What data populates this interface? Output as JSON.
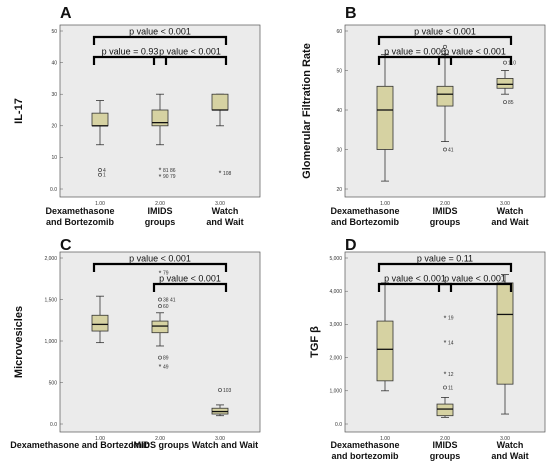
{
  "chart_data": [
    {
      "panel": "A",
      "type": "box",
      "ylabel": "IL-17",
      "ylim": [
        0,
        50
      ],
      "yticks": [
        0.0,
        10,
        20,
        30,
        40,
        50
      ],
      "ytick_labels": [
        "0.0",
        "10",
        "20",
        "30",
        "40",
        "50"
      ],
      "xtick_labels": [
        "1.00",
        "2.00",
        "3.00"
      ],
      "categories": [
        {
          "line1": "Dexamethasone",
          "line2": "and Bortezomib"
        },
        {
          "line1": "IMIDS",
          "line2": "groups"
        },
        {
          "line1": "Watch",
          "line2": "and Wait"
        }
      ],
      "boxes": [
        {
          "min": 14,
          "q1": 20,
          "median": 20,
          "q3": 24,
          "max": 28,
          "outliers": [
            {
              "v": 6,
              "label": "4",
              "marker": "circle"
            },
            {
              "v": 4.5,
              "label": "1",
              "marker": "circle"
            }
          ]
        },
        {
          "min": 14,
          "q1": 20,
          "median": 21,
          "q3": 25,
          "max": 30,
          "outliers": [
            {
              "v": 6,
              "label": "81 86",
              "marker": "star"
            },
            {
              "v": 4,
              "label": "90 79",
              "marker": "star"
            }
          ]
        },
        {
          "min": 20,
          "q1": 25,
          "median": 25,
          "q3": 30,
          "max": 30,
          "outliers": [
            {
              "v": 5,
              "label": "108",
              "marker": "star"
            }
          ]
        }
      ],
      "comparisons": [
        {
          "from": 0,
          "to": 2,
          "text": "p value < 0.001",
          "level": 0
        },
        {
          "from": 0,
          "to": 1,
          "text": "p value = 0.93",
          "level": 1
        },
        {
          "from": 1,
          "to": 2,
          "text": "p value < 0.001",
          "level": 1
        }
      ]
    },
    {
      "panel": "B",
      "type": "box",
      "ylabel": "Glomerular Filtration Rate",
      "ylim": [
        20,
        60
      ],
      "yticks": [
        20,
        30,
        40,
        50,
        60
      ],
      "ytick_labels": [
        "20",
        "30",
        "40",
        "50",
        "60"
      ],
      "xtick_labels": [
        "1.00",
        "2.00",
        "3.00"
      ],
      "categories": [
        {
          "line1": "Dexamethasone",
          "line2": "and Bortezomib"
        },
        {
          "line1": "IMIDS",
          "line2": "groups"
        },
        {
          "line1": "Watch",
          "line2": "and Wait"
        }
      ],
      "boxes": [
        {
          "min": 22,
          "q1": 30,
          "median": 40,
          "q3": 46,
          "max": 54,
          "outliers": []
        },
        {
          "min": 32,
          "q1": 41,
          "median": 44,
          "q3": 46,
          "max": 54,
          "outliers": [
            {
              "v": 56,
              "label": "",
              "marker": "circle"
            },
            {
              "v": 30,
              "label": "41",
              "marker": "circle"
            }
          ]
        },
        {
          "min": 44,
          "q1": 45.5,
          "median": 46.5,
          "q3": 48,
          "max": 50,
          "outliers": [
            {
              "v": 52,
              "label": "110",
              "marker": "circle"
            },
            {
              "v": 42,
              "label": "85",
              "marker": "circle"
            }
          ]
        }
      ],
      "comparisons": [
        {
          "from": 0,
          "to": 2,
          "text": "p value < 0.001",
          "level": 0
        },
        {
          "from": 0,
          "to": 1,
          "text": "p value = 0.006",
          "level": 1
        },
        {
          "from": 1,
          "to": 2,
          "text": "p value < 0.001",
          "level": 1
        }
      ]
    },
    {
      "panel": "C",
      "type": "box",
      "ylabel": "Microvesicles",
      "ylim": [
        0,
        2000
      ],
      "yticks": [
        0,
        500,
        1000,
        1500,
        2000
      ],
      "ytick_labels": [
        "0.0",
        "500",
        "1,000",
        "1,500",
        "2,000"
      ],
      "xtick_labels": [
        "1.00",
        "2.00",
        "3.00"
      ],
      "categories": [
        {
          "line1": "Dexamethasone and Bortezomib",
          "line2": ""
        },
        {
          "line1": "IMIDS groups",
          "line2": ""
        },
        {
          "line1": "Watch and Wait",
          "line2": ""
        }
      ],
      "boxes": [
        {
          "min": 980,
          "q1": 1120,
          "median": 1200,
          "q3": 1310,
          "max": 1540,
          "outliers": []
        },
        {
          "min": 940,
          "q1": 1100,
          "median": 1180,
          "q3": 1240,
          "max": 1340,
          "outliers": [
            {
              "v": 1820,
              "label": "79",
              "marker": "star"
            },
            {
              "v": 1500,
              "label": "38 41",
              "marker": "circle"
            },
            {
              "v": 1420,
              "label": "60",
              "marker": "circle"
            },
            {
              "v": 800,
              "label": "89",
              "marker": "circle"
            },
            {
              "v": 690,
              "label": "49",
              "marker": "star"
            }
          ]
        },
        {
          "min": 100,
          "q1": 120,
          "median": 150,
          "q3": 190,
          "max": 230,
          "outliers": [
            {
              "v": 410,
              "label": "103",
              "marker": "circle"
            }
          ]
        }
      ],
      "comparisons": [
        {
          "from": 0,
          "to": 2,
          "text": "p value < 0.001",
          "level": 0
        },
        {
          "from": 1,
          "to": 2,
          "text": "p value < 0.001",
          "level": 1
        }
      ]
    },
    {
      "panel": "D",
      "type": "box",
      "ylabel": "TGF β",
      "ylim": [
        0,
        5000
      ],
      "yticks": [
        0,
        1000,
        2000,
        3000,
        4000,
        5000
      ],
      "ytick_labels": [
        "0.0",
        "1,000",
        "2,000",
        "3,000",
        "4,000",
        "5,000"
      ],
      "xtick_labels": [
        "1.00",
        "2.00",
        "3.00"
      ],
      "categories": [
        {
          "line1": "Dexamethasone",
          "line2": "and bortezomib"
        },
        {
          "line1": "IMIDS",
          "line2": "groups"
        },
        {
          "line1": "Watch",
          "line2": "and Wait"
        }
      ],
      "boxes": [
        {
          "min": 1000,
          "q1": 1300,
          "median": 2250,
          "q3": 3100,
          "max": 4250,
          "outliers": []
        },
        {
          "min": 200,
          "q1": 250,
          "median": 450,
          "q3": 600,
          "max": 800,
          "outliers": [
            {
              "v": 3200,
              "label": "19",
              "marker": "star"
            },
            {
              "v": 2450,
              "label": "14",
              "marker": "star"
            },
            {
              "v": 1500,
              "label": "12",
              "marker": "star"
            },
            {
              "v": 1100,
              "label": "11",
              "marker": "circle"
            }
          ]
        },
        {
          "min": 300,
          "q1": 1200,
          "median": 3300,
          "q3": 4250,
          "max": 4500,
          "outliers": []
        }
      ],
      "comparisons": [
        {
          "from": 0,
          "to": 2,
          "text": "p value = 0.11",
          "level": 0
        },
        {
          "from": 0,
          "to": 1,
          "text": "p value < 0.001",
          "level": 1
        },
        {
          "from": 1,
          "to": 2,
          "text": "p value < 0.001",
          "level": 1
        }
      ]
    }
  ],
  "colors": {
    "plot_bg": "#ebebeb",
    "box_fill": "#d6d2a2",
    "box_stroke": "#333333",
    "bracket": "#000000"
  }
}
